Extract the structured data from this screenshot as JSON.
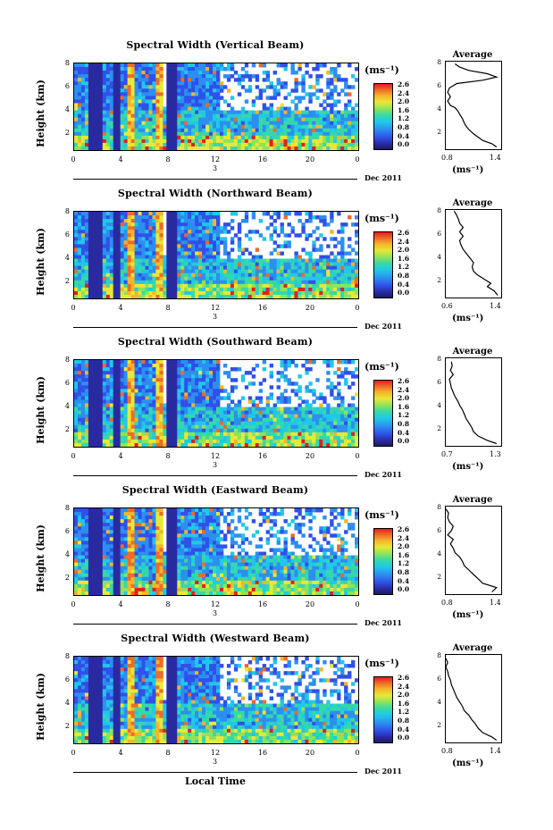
{
  "panels": [
    {
      "title": "Spectral Width (Vertical Beam)",
      "avg_xticks": [
        "0.8",
        "1.4"
      ],
      "cbar_ticks": [
        "2.6",
        "2.4",
        "2.0",
        "1.6",
        "1.2",
        "0.8",
        "0.4",
        "0.0"
      ],
      "avg_profile": [
        [
          1.35,
          0.2
        ],
        [
          1.3,
          0.5
        ],
        [
          1.2,
          0.8
        ],
        [
          1.15,
          1.1
        ],
        [
          1.1,
          1.4
        ],
        [
          1.05,
          1.8
        ],
        [
          1.02,
          2.1
        ],
        [
          1.0,
          2.4
        ],
        [
          0.98,
          2.8
        ],
        [
          0.95,
          3.2
        ],
        [
          0.93,
          3.5
        ],
        [
          0.9,
          3.8
        ],
        [
          0.85,
          4.0
        ],
        [
          0.82,
          4.4
        ],
        [
          0.85,
          4.8
        ],
        [
          0.82,
          5.2
        ],
        [
          0.84,
          5.6
        ],
        [
          0.92,
          6.0
        ],
        [
          1.2,
          6.3
        ],
        [
          1.35,
          6.6
        ],
        [
          1.25,
          6.9
        ],
        [
          1.05,
          7.2
        ],
        [
          0.95,
          7.5
        ],
        [
          0.9,
          7.8
        ]
      ]
    },
    {
      "title": "Spectral Width (Northward Beam)",
      "avg_xticks": [
        "0.6",
        "1.4"
      ],
      "cbar_ticks": [
        "2.6",
        "2.4",
        "2.0",
        "1.6",
        "1.2",
        "0.8",
        "0.4",
        "0.0"
      ],
      "avg_profile": [
        [
          1.35,
          0.2
        ],
        [
          1.3,
          0.6
        ],
        [
          1.2,
          1.0
        ],
        [
          1.25,
          1.3
        ],
        [
          1.15,
          1.7
        ],
        [
          1.05,
          2.1
        ],
        [
          1.0,
          2.4
        ],
        [
          0.98,
          2.8
        ],
        [
          1.0,
          3.2
        ],
        [
          0.95,
          3.6
        ],
        [
          0.9,
          4.0
        ],
        [
          0.85,
          4.4
        ],
        [
          0.82,
          4.8
        ],
        [
          0.8,
          5.2
        ],
        [
          0.85,
          5.6
        ],
        [
          0.8,
          6.0
        ],
        [
          0.85,
          6.4
        ],
        [
          0.8,
          6.8
        ],
        [
          0.78,
          7.2
        ],
        [
          0.75,
          7.6
        ],
        [
          0.72,
          7.9
        ]
      ]
    },
    {
      "title": "Spectral Width (Southward Beam)",
      "avg_xticks": [
        "0.7",
        "1.3"
      ],
      "cbar_ticks": [
        "2.6",
        "2.4",
        "2.0",
        "1.6",
        "1.2",
        "0.8",
        "0.4",
        "0.0"
      ],
      "avg_profile": [
        [
          1.25,
          0.2
        ],
        [
          1.15,
          0.5
        ],
        [
          1.05,
          0.9
        ],
        [
          1.0,
          1.3
        ],
        [
          0.98,
          1.7
        ],
        [
          0.95,
          2.1
        ],
        [
          0.92,
          2.5
        ],
        [
          0.9,
          2.9
        ],
        [
          0.88,
          3.3
        ],
        [
          0.85,
          3.7
        ],
        [
          0.83,
          4.1
        ],
        [
          0.8,
          4.5
        ],
        [
          0.78,
          4.9
        ],
        [
          0.76,
          5.3
        ],
        [
          0.75,
          5.7
        ],
        [
          0.74,
          6.1
        ],
        [
          0.78,
          6.5
        ],
        [
          0.75,
          6.9
        ],
        [
          0.77,
          7.3
        ],
        [
          0.76,
          7.7
        ]
      ]
    },
    {
      "title": "Spectral Width (Eastward Beam)",
      "avg_xticks": [
        "0.8",
        "1.4"
      ],
      "cbar_ticks": [
        "2.6",
        "2.4",
        "2.0",
        "1.6",
        "1.2",
        "0.8",
        "0.4",
        "0.0"
      ],
      "avg_profile": [
        [
          1.3,
          0.2
        ],
        [
          1.35,
          0.6
        ],
        [
          1.2,
          1.0
        ],
        [
          1.15,
          1.4
        ],
        [
          1.1,
          1.8
        ],
        [
          1.05,
          2.2
        ],
        [
          1.0,
          2.6
        ],
        [
          0.98,
          3.0
        ],
        [
          0.95,
          3.4
        ],
        [
          0.9,
          3.8
        ],
        [
          0.88,
          4.2
        ],
        [
          0.85,
          4.6
        ],
        [
          0.88,
          5.0
        ],
        [
          0.82,
          5.4
        ],
        [
          0.86,
          5.8
        ],
        [
          0.88,
          6.2
        ],
        [
          0.84,
          6.6
        ],
        [
          0.82,
          7.0
        ],
        [
          0.83,
          7.4
        ],
        [
          0.8,
          7.8
        ]
      ]
    },
    {
      "title": "Spectral Width (Westward Beam)",
      "avg_xticks": [
        "0.8",
        "1.4"
      ],
      "cbar_ticks": [
        "2.6",
        "2.4",
        "2.0",
        "1.6",
        "1.2",
        "0.8",
        "0.4",
        "0.0"
      ],
      "avg_profile": [
        [
          1.35,
          0.2
        ],
        [
          1.3,
          0.5
        ],
        [
          1.2,
          0.9
        ],
        [
          1.15,
          1.3
        ],
        [
          1.12,
          1.7
        ],
        [
          1.08,
          2.1
        ],
        [
          1.05,
          2.5
        ],
        [
          1.0,
          2.9
        ],
        [
          0.98,
          3.3
        ],
        [
          0.95,
          3.7
        ],
        [
          0.92,
          4.1
        ],
        [
          0.9,
          4.5
        ],
        [
          0.88,
          4.9
        ],
        [
          0.86,
          5.3
        ],
        [
          0.85,
          5.7
        ],
        [
          0.83,
          6.1
        ],
        [
          0.82,
          6.5
        ],
        [
          0.8,
          6.9
        ],
        [
          0.82,
          7.3
        ],
        [
          0.8,
          7.7
        ]
      ]
    }
  ],
  "ylabel": "Height (km)",
  "yticks": [
    "8",
    "6",
    "4",
    "2"
  ],
  "xticks": [
    "0",
    "4",
    "8",
    "12",
    "16",
    "20",
    "0"
  ],
  "day_label": "3",
  "date_label": "Dec 2011",
  "cbar_unit": "(ms⁻¹)",
  "avg_title": "Average",
  "avg_unit": "(ms⁻¹)",
  "avg_yticks": [
    "8",
    "6",
    "4",
    "2"
  ],
  "xlabel": "Local Time",
  "chart_data": {
    "type": "heatmap",
    "title": "Spectral Width",
    "xlabel": "Local Time",
    "ylabel": "Height (km)",
    "xlim": [
      0,
      24
    ],
    "ylim": [
      0,
      8
    ],
    "colorbar": {
      "label": "(ms⁻¹)",
      "range": [
        0.0,
        2.6
      ]
    },
    "date": "Dec 2011",
    "series": [
      {
        "name": "Vertical Beam"
      },
      {
        "name": "Northward Beam"
      },
      {
        "name": "Southward Beam"
      },
      {
        "name": "Eastward Beam"
      },
      {
        "name": "Westward Beam"
      }
    ]
  },
  "colors": {
    "low": "#2a2aa0",
    "mid": "#20c8e8",
    "high": "#e02020"
  }
}
